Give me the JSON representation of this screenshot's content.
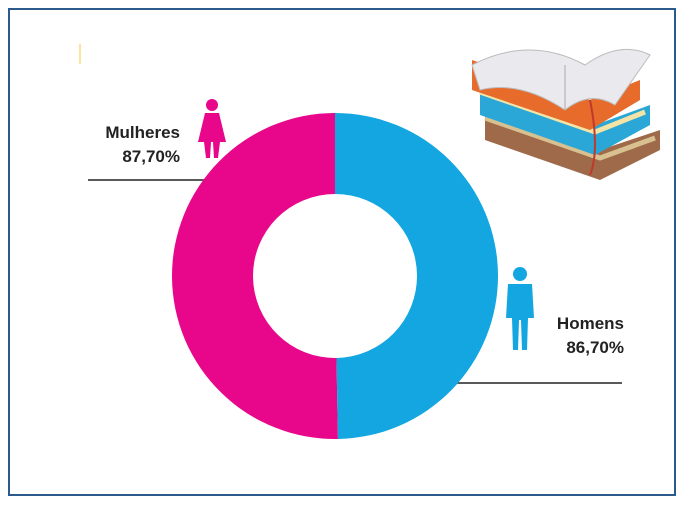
{
  "chart_data": {
    "type": "donut",
    "categories": [
      "Mulheres",
      "Homens"
    ],
    "values": [
      87.7,
      86.7
    ],
    "value_labels": [
      "87,70%",
      "86,70%"
    ],
    "colors": [
      "#e8078b",
      "#13a6e0"
    ]
  }
}
